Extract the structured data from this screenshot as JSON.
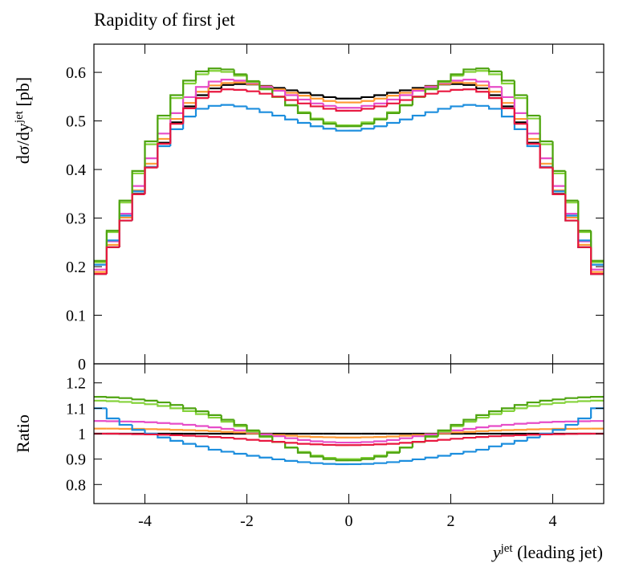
{
  "chart_data": [
    {
      "type": "histogram",
      "title": "Rapidity of first jet",
      "ylabel": [
        "dσ/dy",
        "jet",
        " [pb]"
      ],
      "bins": [
        -5,
        -4.75,
        -4.5,
        -4.25,
        -4,
        -3.75,
        -3.5,
        -3.25,
        -3,
        -2.75,
        -2.5,
        -2.25,
        -2,
        -1.75,
        -1.5,
        -1.25,
        -1,
        -0.75,
        -0.5,
        -0.25,
        0,
        0.25,
        0.5,
        0.75,
        1,
        1.25,
        1.5,
        1.75,
        2,
        2.25,
        2.5,
        2.75,
        3,
        3.25,
        3.5,
        3.75,
        4,
        4.25,
        4.5,
        4.75,
        5
      ],
      "xlim": [
        -5,
        5
      ],
      "xticks": [
        -4,
        -2,
        0,
        2,
        4
      ],
      "show_xtick_labels": false,
      "ylim": [
        0,
        0.658
      ],
      "yticks": [
        0,
        0.1,
        0.2,
        0.3,
        0.4,
        0.5,
        0.6
      ],
      "series": [
        {
          "color": "#000000",
          "values": [
            0.185,
            0.24,
            0.295,
            0.35,
            0.405,
            0.455,
            0.497,
            0.53,
            0.553,
            0.567,
            0.574,
            0.576,
            0.575,
            0.572,
            0.568,
            0.563,
            0.558,
            0.553,
            0.549,
            0.546,
            0.546,
            0.549,
            0.553,
            0.558,
            0.563,
            0.568,
            0.572,
            0.575,
            0.576,
            0.574,
            0.567,
            0.553,
            0.53,
            0.497,
            0.455,
            0.405,
            0.35,
            0.295,
            0.24,
            0.185
          ]
        },
        {
          "color": "#ff9933",
          "values": [
            0.189,
            0.245,
            0.301,
            0.357,
            0.412,
            0.463,
            0.504,
            0.537,
            0.56,
            0.573,
            0.578,
            0.579,
            0.576,
            0.571,
            0.565,
            0.558,
            0.552,
            0.546,
            0.541,
            0.538,
            0.538,
            0.541,
            0.546,
            0.552,
            0.558,
            0.565,
            0.571,
            0.576,
            0.579,
            0.578,
            0.573,
            0.56,
            0.537,
            0.504,
            0.463,
            0.412,
            0.357,
            0.301,
            0.245,
            0.189
          ]
        },
        {
          "color": "#e64cc8",
          "values": [
            0.194,
            0.252,
            0.309,
            0.366,
            0.423,
            0.474,
            0.516,
            0.549,
            0.57,
            0.581,
            0.585,
            0.583,
            0.578,
            0.57,
            0.562,
            0.553,
            0.544,
            0.536,
            0.531,
            0.527,
            0.527,
            0.531,
            0.536,
            0.544,
            0.553,
            0.562,
            0.57,
            0.578,
            0.583,
            0.585,
            0.581,
            0.57,
            0.549,
            0.516,
            0.474,
            0.423,
            0.366,
            0.309,
            0.252,
            0.194
          ]
        },
        {
          "color": "#1c8ede",
          "values": [
            0.204,
            0.254,
            0.305,
            0.355,
            0.405,
            0.448,
            0.483,
            0.509,
            0.525,
            0.531,
            0.533,
            0.53,
            0.525,
            0.518,
            0.511,
            0.503,
            0.496,
            0.489,
            0.484,
            0.48,
            0.48,
            0.484,
            0.489,
            0.496,
            0.503,
            0.511,
            0.518,
            0.525,
            0.53,
            0.533,
            0.531,
            0.525,
            0.509,
            0.483,
            0.448,
            0.405,
            0.355,
            0.305,
            0.254,
            0.204
          ]
        },
        {
          "color": "#84d23a",
          "values": [
            0.209,
            0.271,
            0.332,
            0.392,
            0.452,
            0.505,
            0.547,
            0.577,
            0.596,
            0.603,
            0.601,
            0.593,
            0.58,
            0.565,
            0.549,
            0.533,
            0.518,
            0.505,
            0.497,
            0.491,
            0.491,
            0.497,
            0.505,
            0.518,
            0.533,
            0.549,
            0.565,
            0.58,
            0.593,
            0.601,
            0.603,
            0.596,
            0.577,
            0.547,
            0.505,
            0.452,
            0.392,
            0.332,
            0.271,
            0.209
          ]
        },
        {
          "color": "#4ea410",
          "values": [
            0.212,
            0.274,
            0.336,
            0.397,
            0.458,
            0.511,
            0.553,
            0.583,
            0.602,
            0.608,
            0.606,
            0.596,
            0.582,
            0.566,
            0.55,
            0.532,
            0.516,
            0.503,
            0.494,
            0.489,
            0.489,
            0.494,
            0.503,
            0.516,
            0.532,
            0.55,
            0.566,
            0.582,
            0.596,
            0.606,
            0.608,
            0.602,
            0.583,
            0.553,
            0.511,
            0.458,
            0.397,
            0.336,
            0.274,
            0.212
          ]
        },
        {
          "color": "#e8173f",
          "values": [
            0.185,
            0.24,
            0.295,
            0.349,
            0.404,
            0.453,
            0.494,
            0.526,
            0.547,
            0.56,
            0.565,
            0.564,
            0.561,
            0.556,
            0.55,
            0.543,
            0.536,
            0.53,
            0.525,
            0.521,
            0.521,
            0.525,
            0.53,
            0.536,
            0.543,
            0.55,
            0.556,
            0.561,
            0.564,
            0.565,
            0.56,
            0.547,
            0.526,
            0.494,
            0.453,
            0.404,
            0.349,
            0.295,
            0.24,
            0.185
          ]
        }
      ]
    },
    {
      "type": "histogram",
      "ylabel": [
        "Ratio"
      ],
      "xlabel": [
        "y",
        "jet",
        " (leading jet)"
      ],
      "bins": [
        -5,
        -4.75,
        -4.5,
        -4.25,
        -4,
        -3.75,
        -3.5,
        -3.25,
        -3,
        -2.75,
        -2.5,
        -2.25,
        -2,
        -1.75,
        -1.5,
        -1.25,
        -1,
        -0.75,
        -0.5,
        -0.25,
        0,
        0.25,
        0.5,
        0.75,
        1,
        1.25,
        1.5,
        1.75,
        2,
        2.25,
        2.5,
        2.75,
        3,
        3.25,
        3.5,
        3.75,
        4,
        4.25,
        4.5,
        4.75,
        5
      ],
      "xlim": [
        -5,
        5
      ],
      "xticks": [
        -4,
        -2,
        0,
        2,
        4
      ],
      "show_xtick_labels": true,
      "ylim": [
        0.725,
        1.275
      ],
      "yticks": [
        0.8,
        0.9,
        1,
        1.1,
        1.2
      ],
      "series": [
        {
          "color": "#000000",
          "values": [
            1,
            1,
            1,
            1,
            1,
            1,
            1,
            1,
            1,
            1,
            1,
            1,
            1,
            1,
            1,
            1,
            1,
            1,
            1,
            1,
            1,
            1,
            1,
            1,
            1,
            1,
            1,
            1,
            1,
            1,
            1,
            1,
            1,
            1,
            1,
            1,
            1,
            1,
            1,
            1
          ]
        },
        {
          "color": "#ff9933",
          "values": [
            1.02,
            1.02,
            1.019,
            1.019,
            1.018,
            1.017,
            1.015,
            1.014,
            1.012,
            1.01,
            1.007,
            1.005,
            1.001,
            0.998,
            0.995,
            0.992,
            0.989,
            0.987,
            0.986,
            0.985,
            0.985,
            0.986,
            0.987,
            0.989,
            0.992,
            0.995,
            0.998,
            1.001,
            1.005,
            1.007,
            1.01,
            1.012,
            1.014,
            1.015,
            1.017,
            1.018,
            1.019,
            1.019,
            1.02,
            1.02
          ]
        },
        {
          "color": "#e64cc8",
          "values": [
            1.05,
            1.049,
            1.048,
            1.047,
            1.045,
            1.042,
            1.039,
            1.035,
            1.03,
            1.025,
            1.019,
            1.013,
            1.005,
            0.997,
            0.99,
            0.982,
            0.975,
            0.97,
            0.967,
            0.965,
            0.965,
            0.967,
            0.97,
            0.975,
            0.982,
            0.99,
            0.997,
            1.005,
            1.013,
            1.019,
            1.025,
            1.03,
            1.035,
            1.039,
            1.042,
            1.045,
            1.047,
            1.048,
            1.049,
            1.05
          ]
        },
        {
          "color": "#1c8ede",
          "values": [
            1.1,
            1.06,
            1.035,
            1.015,
            1.0,
            0.985,
            0.972,
            0.96,
            0.95,
            0.937,
            0.929,
            0.921,
            0.913,
            0.906,
            0.899,
            0.893,
            0.888,
            0.884,
            0.881,
            0.88,
            0.88,
            0.881,
            0.884,
            0.888,
            0.893,
            0.899,
            0.906,
            0.913,
            0.921,
            0.929,
            0.937,
            0.95,
            0.96,
            0.972,
            0.985,
            1.0,
            1.015,
            1.035,
            1.06,
            1.1
          ]
        },
        {
          "color": "#84d23a",
          "values": [
            1.13,
            1.128,
            1.125,
            1.121,
            1.116,
            1.109,
            1.1,
            1.089,
            1.077,
            1.063,
            1.047,
            1.029,
            1.008,
            0.987,
            0.967,
            0.946,
            0.928,
            0.914,
            0.905,
            0.9,
            0.9,
            0.905,
            0.914,
            0.928,
            0.946,
            0.967,
            0.987,
            1.008,
            1.029,
            1.047,
            1.063,
            1.077,
            1.089,
            1.1,
            1.109,
            1.116,
            1.121,
            1.125,
            1.128,
            1.13
          ]
        },
        {
          "color": "#4ea410",
          "values": [
            1.145,
            1.143,
            1.14,
            1.135,
            1.13,
            1.123,
            1.113,
            1.1,
            1.088,
            1.073,
            1.055,
            1.035,
            1.013,
            0.99,
            0.968,
            0.945,
            0.925,
            0.91,
            0.9,
            0.895,
            0.895,
            0.9,
            0.91,
            0.925,
            0.945,
            0.968,
            0.99,
            1.013,
            1.035,
            1.055,
            1.073,
            1.088,
            1.1,
            1.113,
            1.123,
            1.13,
            1.135,
            1.14,
            1.143,
            1.145
          ]
        },
        {
          "color": "#e8173f",
          "values": [
            1.0,
            1.0,
            0.999,
            0.998,
            0.997,
            0.996,
            0.994,
            0.992,
            0.99,
            0.987,
            0.984,
            0.98,
            0.976,
            0.972,
            0.968,
            0.964,
            0.96,
            0.958,
            0.956,
            0.955,
            0.955,
            0.956,
            0.958,
            0.96,
            0.964,
            0.968,
            0.972,
            0.976,
            0.98,
            0.984,
            0.987,
            0.99,
            0.992,
            0.994,
            0.996,
            0.997,
            0.998,
            0.999,
            1.0,
            1.0
          ]
        }
      ]
    }
  ]
}
